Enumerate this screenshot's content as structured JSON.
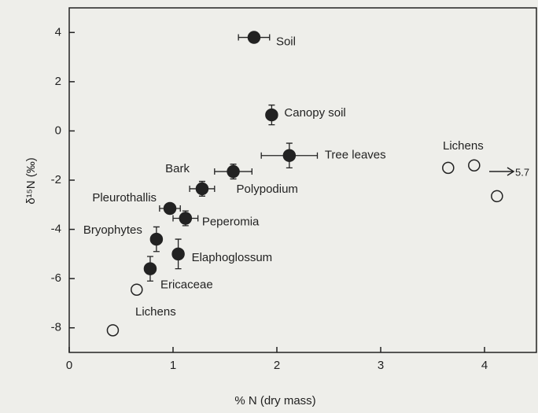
{
  "chart_data": {
    "type": "scatter",
    "xlabel": "% N (dry mass)",
    "ylabel": "δ¹⁵N (‰)",
    "xlim": [
      0,
      4.5
    ],
    "ylim": [
      -9,
      5
    ],
    "xticks": [
      0,
      1,
      2,
      3,
      4
    ],
    "yticks": [
      -8,
      -6,
      -4,
      -2,
      0,
      2,
      4
    ],
    "series": [
      {
        "filled": true,
        "color": "#222222",
        "labels": [
          "Soil",
          "Canopy soil",
          "Tree leaves",
          "Polypodium",
          "Bark",
          "Pleurothallis",
          "Peperomia",
          "Bryophytes",
          "Elaphoglossum",
          "Ericaceae"
        ],
        "x": [
          1.78,
          1.95,
          2.12,
          1.58,
          1.28,
          0.97,
          1.12,
          0.84,
          1.05,
          0.78
        ],
        "values": [
          3.8,
          0.65,
          -1.0,
          -1.65,
          -2.35,
          -3.15,
          -3.55,
          -4.4,
          -5.0,
          -5.6
        ],
        "xerr": [
          0.15,
          0.05,
          0.27,
          0.18,
          0.12,
          0.1,
          0.12,
          0.05,
          0.05,
          0.05
        ],
        "yerr": [
          0.15,
          0.4,
          0.5,
          0.3,
          0.3,
          0.15,
          0.3,
          0.5,
          0.6,
          0.5
        ]
      },
      {
        "filled": false,
        "color": "#222222",
        "x": [
          0.42,
          0.65,
          3.65,
          3.9,
          4.12
        ],
        "values": [
          -8.1,
          -6.45,
          -1.5,
          -1.4,
          -2.65
        ]
      }
    ],
    "annotations": [
      "Lichens",
      "Lichens",
      "5.7"
    ]
  }
}
